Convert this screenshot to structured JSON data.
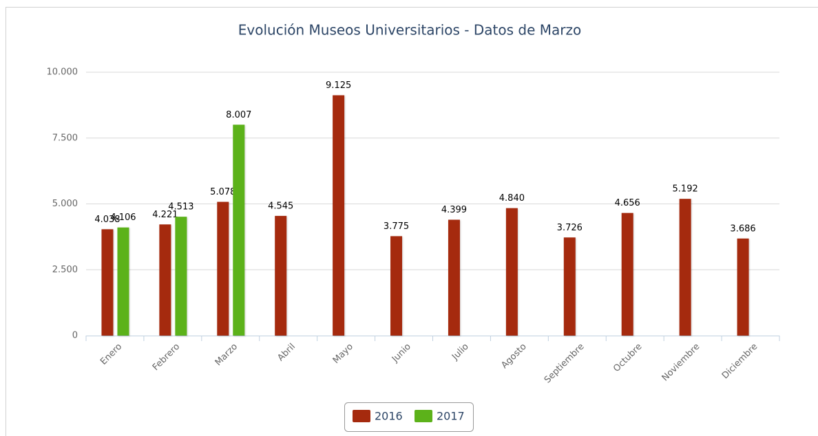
{
  "chart_data": {
    "type": "bar",
    "title": "Evolución Museos Universitarios - Datos de Marzo",
    "categories": [
      "Enero",
      "Febrero",
      "Marzo",
      "Abril",
      "Mayo",
      "Junio",
      "Julio",
      "Agosto",
      "Septiembre",
      "Octubre",
      "Noviembre",
      "Diciembre"
    ],
    "series": [
      {
        "name": "2016",
        "color": "#a52a0e",
        "values": [
          4038,
          4221,
          5078,
          4545,
          9125,
          3775,
          4399,
          4840,
          3726,
          4656,
          5192,
          3686
        ],
        "value_labels": [
          "4.038",
          "4.221",
          "5.078",
          "4.545",
          "9.125",
          "3.775",
          "4.399",
          "4.840",
          "3.726",
          "4.656",
          "5.192",
          "3.686"
        ]
      },
      {
        "name": "2017",
        "color": "#5cb21a",
        "values": [
          4106,
          4513,
          8007,
          null,
          null,
          null,
          null,
          null,
          null,
          null,
          null,
          null
        ],
        "value_labels": [
          "4.106",
          "4.513",
          "8.007",
          null,
          null,
          null,
          null,
          null,
          null,
          null,
          null,
          null
        ]
      }
    ],
    "ylim": [
      0,
      10000
    ],
    "yticks": [
      0,
      {
        "value": 2500,
        "label": "2.500"
      },
      {
        "value": 5000,
        "label": "5.000"
      },
      {
        "value": 7500,
        "label": "7.500"
      },
      {
        "value": 10000,
        "label": "10.000"
      }
    ],
    "grid": true,
    "legend": "bottom"
  }
}
